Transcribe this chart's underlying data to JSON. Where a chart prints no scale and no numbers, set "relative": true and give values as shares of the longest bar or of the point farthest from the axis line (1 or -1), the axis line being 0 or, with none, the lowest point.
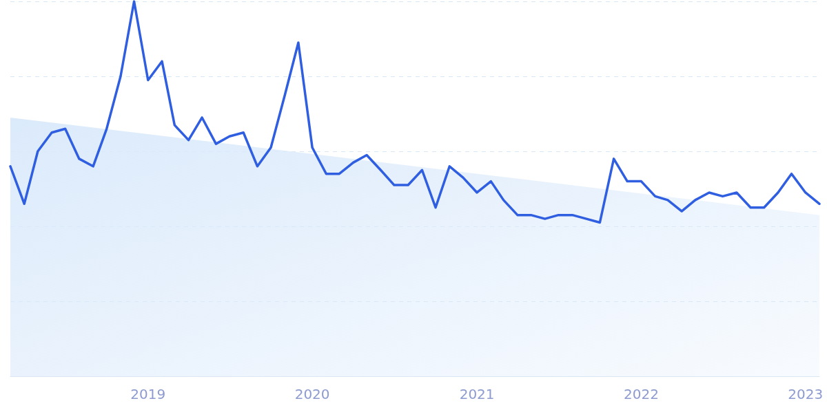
{
  "chart_data": {
    "type": "line",
    "relative": true,
    "xlim": [
      "2018-03",
      "2023-02"
    ],
    "xticks": [
      "2019",
      "2020",
      "2021",
      "2022",
      "2023"
    ],
    "grid": "y",
    "marker": "none",
    "line_style": "solid",
    "series": [
      {
        "type": "area",
        "color": "#dbeafb",
        "x": [
          "2018-03",
          "2023-02"
        ],
        "values": [
          0.69,
          0.43
        ]
      },
      {
        "color": "#2f5fe0",
        "x": [
          "2018-03",
          "2018-04",
          "2018-05",
          "2018-06",
          "2018-07",
          "2018-08",
          "2018-09",
          "2018-10",
          "2018-11",
          "2018-12",
          "2019-01",
          "2019-02",
          "2019-03",
          "2019-04",
          "2019-05",
          "2019-06",
          "2019-07",
          "2019-08",
          "2019-09",
          "2019-10",
          "2019-11",
          "2019-12",
          "2020-01",
          "2020-02",
          "2020-03",
          "2020-04",
          "2020-05",
          "2020-06",
          "2020-07",
          "2020-08",
          "2020-09",
          "2020-10",
          "2020-11",
          "2020-12",
          "2021-01",
          "2021-02",
          "2021-03",
          "2021-04",
          "2021-05",
          "2021-06",
          "2021-07",
          "2021-08",
          "2021-09",
          "2021-10",
          "2021-11",
          "2021-12",
          "2022-01",
          "2022-02",
          "2022-03",
          "2022-04",
          "2022-05",
          "2022-06",
          "2022-07",
          "2022-08",
          "2022-09",
          "2022-10",
          "2022-11",
          "2022-12",
          "2023-01",
          "2023-02"
        ],
        "values": [
          0.56,
          0.46,
          0.6,
          0.65,
          0.66,
          0.58,
          0.56,
          0.66,
          0.8,
          1.0,
          0.79,
          0.84,
          0.67,
          0.63,
          0.69,
          0.62,
          0.64,
          0.65,
          0.56,
          0.61,
          0.75,
          0.89,
          0.61,
          0.54,
          0.54,
          0.57,
          0.59,
          0.55,
          0.51,
          0.51,
          0.55,
          0.45,
          0.56,
          0.53,
          0.49,
          0.52,
          0.47,
          0.43,
          0.43,
          0.42,
          0.43,
          0.43,
          0.42,
          0.41,
          0.58,
          0.52,
          0.52,
          0.48,
          0.47,
          0.44,
          0.47,
          0.49,
          0.48,
          0.49,
          0.45,
          0.45,
          0.49,
          0.54,
          0.49,
          0.46
        ]
      }
    ]
  }
}
